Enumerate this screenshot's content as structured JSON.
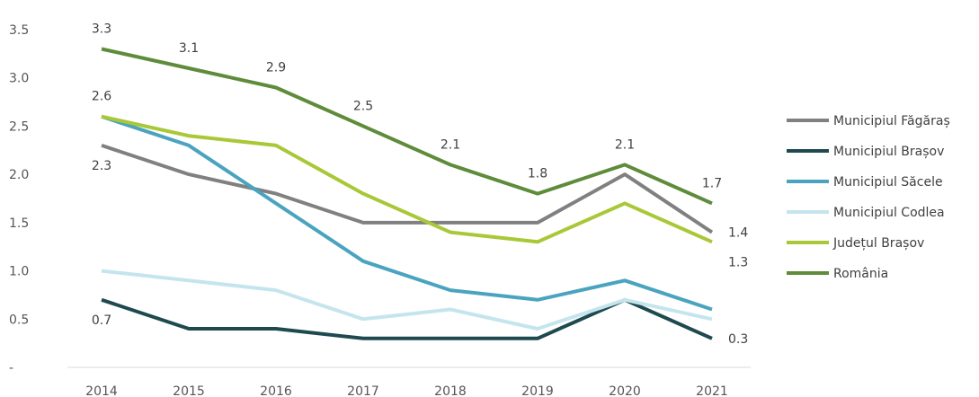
{
  "chart_data": {
    "type": "line",
    "title": "",
    "xlabel": "",
    "ylabel": "",
    "x": [
      "2014",
      "2015",
      "2016",
      "2017",
      "2018",
      "2019",
      "2020",
      "2021"
    ],
    "ylim": [
      0,
      3.5
    ],
    "yticks": [
      "-",
      "0.5",
      "1.0",
      "1.5",
      "2.0",
      "2.5",
      "3.0",
      "3.5"
    ],
    "grid": false,
    "legend_position": "right",
    "series": [
      {
        "name": "Municipiul Făgăraș",
        "color": "#808080",
        "values": [
          2.3,
          2.0,
          1.8,
          1.5,
          1.5,
          1.5,
          2.0,
          1.4
        ]
      },
      {
        "name": "Municipiul Brașov",
        "color": "#1e4a4f",
        "values": [
          0.7,
          0.4,
          0.4,
          0.3,
          0.3,
          0.3,
          0.7,
          0.3
        ]
      },
      {
        "name": "Municipiul Săcele",
        "color": "#4aa3bf",
        "values": [
          2.6,
          2.3,
          1.7,
          1.1,
          0.8,
          0.7,
          0.9,
          0.6
        ]
      },
      {
        "name": "Municipiul Codlea",
        "color": "#c5e5ee",
        "values": [
          1.0,
          0.9,
          0.8,
          0.5,
          0.6,
          0.4,
          0.7,
          0.5
        ]
      },
      {
        "name": "Județul Brașov",
        "color": "#a8c838",
        "values": [
          2.6,
          2.4,
          2.3,
          1.8,
          1.4,
          1.3,
          1.7,
          1.3
        ]
      },
      {
        "name": "România",
        "color": "#5e8c3a",
        "values": [
          3.3,
          3.1,
          2.9,
          2.5,
          2.1,
          1.8,
          2.1,
          1.7
        ]
      }
    ],
    "data_labels": [
      {
        "series": 5,
        "index": 0,
        "text": "3.3",
        "place": "above"
      },
      {
        "series": 5,
        "index": 1,
        "text": "3.1",
        "place": "above"
      },
      {
        "series": 5,
        "index": 2,
        "text": "2.9",
        "place": "above"
      },
      {
        "series": 5,
        "index": 3,
        "text": "2.5",
        "place": "above"
      },
      {
        "series": 5,
        "index": 4,
        "text": "2.1",
        "place": "above"
      },
      {
        "series": 5,
        "index": 5,
        "text": "1.8",
        "place": "above"
      },
      {
        "series": 5,
        "index": 6,
        "text": "2.1",
        "place": "above"
      },
      {
        "series": 5,
        "index": 7,
        "text": "1.7",
        "place": "above"
      },
      {
        "series": 4,
        "index": 0,
        "text": "2.6",
        "place": "above"
      },
      {
        "series": 0,
        "index": 0,
        "text": "2.3",
        "place": "below"
      },
      {
        "series": 1,
        "index": 0,
        "text": "0.7",
        "place": "below"
      },
      {
        "series": 0,
        "index": 7,
        "text": "1.4",
        "place": "right"
      },
      {
        "series": 4,
        "index": 7,
        "text": "1.3",
        "place": "below-right"
      },
      {
        "series": 1,
        "index": 7,
        "text": "0.3",
        "place": "right"
      }
    ]
  }
}
